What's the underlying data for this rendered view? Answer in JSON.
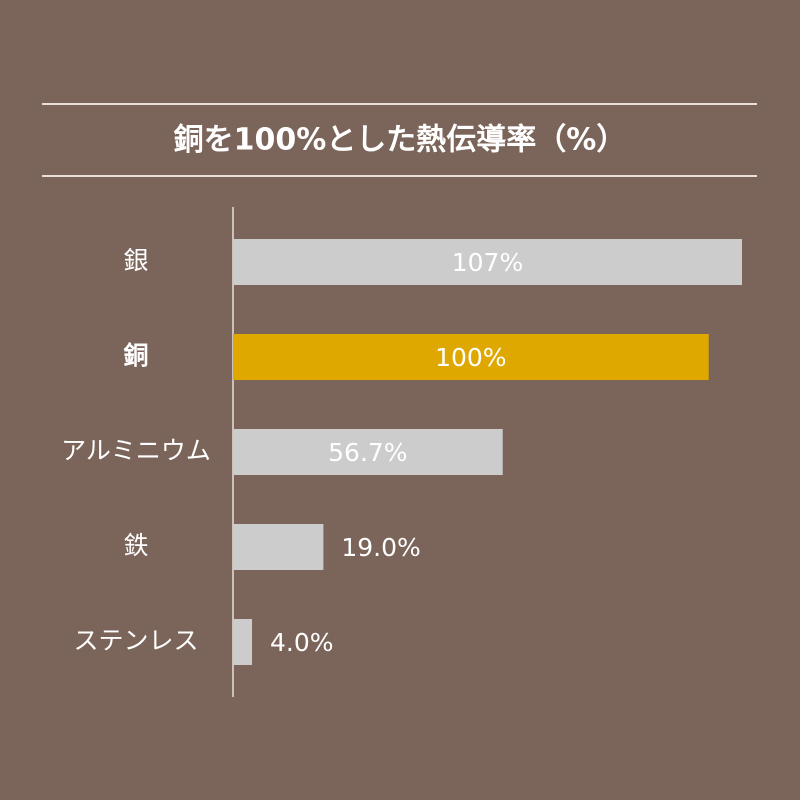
{
  "chart_data": {
    "type": "hbar",
    "title": "銅を100%とした熱伝導率（%）",
    "categories": [
      "銀",
      "銅",
      "アルミニウム",
      "鉄",
      "ステンレス"
    ],
    "values": [
      107,
      100,
      56.7,
      19.0,
      4.0
    ],
    "value_labels": [
      "107%",
      "100%",
      "56.7%",
      "19.0%",
      "4.0%"
    ],
    "color": "#cccccc",
    "colors": [
      "#cccccc",
      "#dfa800",
      "#cccccc",
      "#cccccc",
      "#cccccc"
    ]
  }
}
